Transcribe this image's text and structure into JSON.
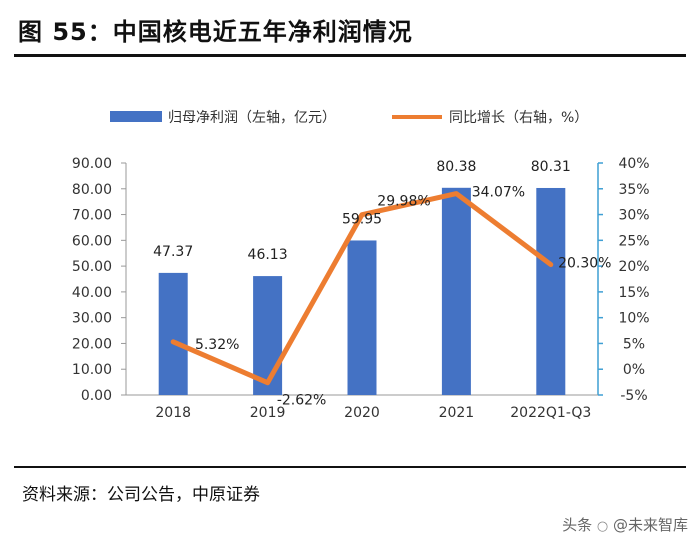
{
  "figure_title": "图 55：中国核电近五年净利润情况",
  "source": "资料来源：公司公告，中原证券",
  "watermark": {
    "prefix": "头条",
    "handle": "@未来智库",
    "overlay": "未来智库"
  },
  "colors": {
    "bar": "#4472c4",
    "line": "#ed7d31",
    "right_axis": "#3f9fd4",
    "axis_text": "#333333"
  },
  "chart_data": {
    "type": "bar+line",
    "title": "中国核电近五年净利润情况",
    "categories": [
      "2018",
      "2019",
      "2020",
      "2021",
      "2022Q1-Q3"
    ],
    "series": [
      {
        "name": "归母净利润（左轴，亿元）",
        "type": "bar",
        "axis": "left",
        "values": [
          47.37,
          46.13,
          59.95,
          80.38,
          80.31
        ],
        "labels": [
          "47.37",
          "46.13",
          "59.95",
          "80.38",
          "80.31"
        ]
      },
      {
        "name": "同比增长（右轴，%）",
        "type": "line",
        "axis": "right",
        "values": [
          5.32,
          -2.62,
          29.98,
          34.07,
          20.3
        ],
        "labels": [
          "5.32%",
          "-2.62%",
          "29.98%",
          "34.07%",
          "20.30%"
        ]
      }
    ],
    "left_axis": {
      "range": [
        0,
        90
      ],
      "ticks": [
        "0.00",
        "10.00",
        "20.00",
        "30.00",
        "40.00",
        "50.00",
        "60.00",
        "70.00",
        "80.00",
        "90.00"
      ]
    },
    "right_axis": {
      "range": [
        -5,
        40
      ],
      "ticks": [
        "-5%",
        "0%",
        "5%",
        "10%",
        "15%",
        "20%",
        "25%",
        "30%",
        "35%",
        "40%"
      ]
    },
    "legend_position": "top-center",
    "grid": false
  }
}
